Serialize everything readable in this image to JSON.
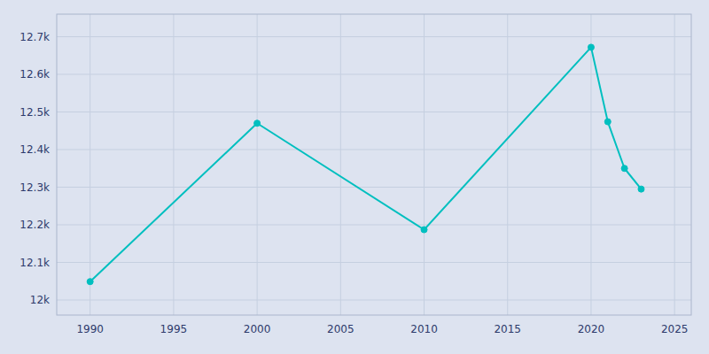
{
  "chart_data": {
    "type": "line",
    "x": [
      1990,
      2000,
      2010,
      2020,
      2021,
      2022,
      2023
    ],
    "values": [
      12049,
      12470,
      12187,
      12672,
      12474,
      12350,
      12295
    ],
    "color": "#00BFBF",
    "marker": "circle",
    "xlim": [
      1988,
      2026
    ],
    "ylim": [
      11960,
      12760
    ],
    "xticks": [
      1990,
      1995,
      2000,
      2005,
      2010,
      2015,
      2020,
      2025
    ],
    "yticks": [
      {
        "value": 12000,
        "label": "12k"
      },
      {
        "value": 12100,
        "label": "12.1k"
      },
      {
        "value": 12200,
        "label": "12.2k"
      },
      {
        "value": 12300,
        "label": "12.3k"
      },
      {
        "value": 12400,
        "label": "12.4k"
      },
      {
        "value": 12500,
        "label": "12.5k"
      },
      {
        "value": 12600,
        "label": "12.6k"
      },
      {
        "value": 12700,
        "label": "12.7k"
      }
    ],
    "grid": true
  }
}
